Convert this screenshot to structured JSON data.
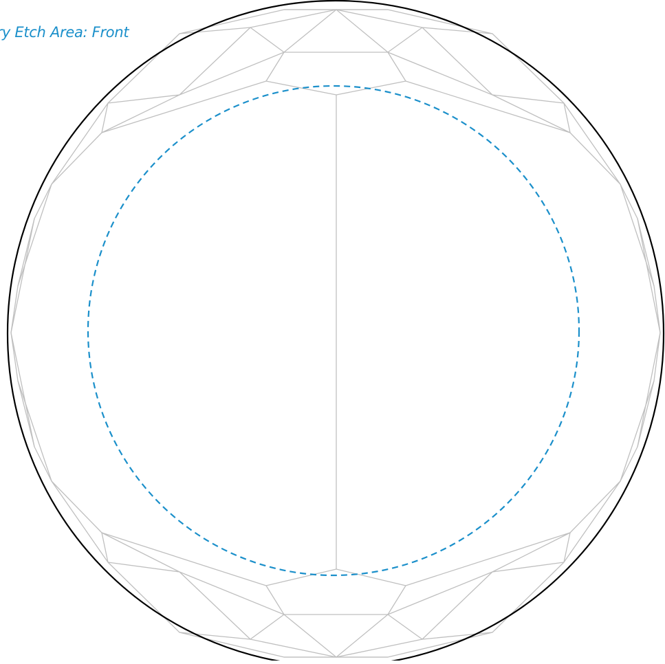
{
  "label": {
    "text": "ary Etch Area:  Front"
  },
  "colors": {
    "label": "#1a8fca",
    "etch_boundary": "#1a8fca",
    "outline": "#000000",
    "facet_lines": "#bfbfbf",
    "background": "#ffffff"
  },
  "line_styles": {
    "etch_boundary": "dashed",
    "outline": "solid",
    "facet_lines": "solid"
  }
}
